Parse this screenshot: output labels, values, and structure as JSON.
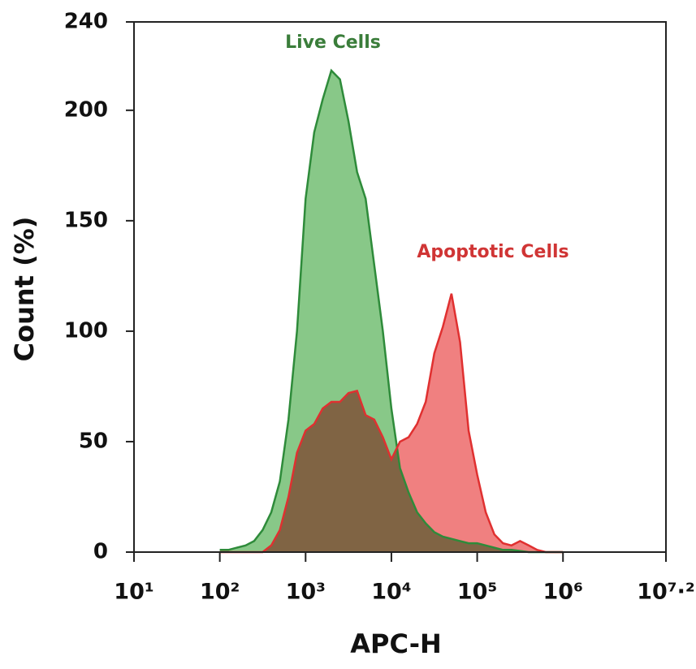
{
  "chart_data": {
    "type": "area",
    "x_label": "APC-H",
    "y_label": "Count (%)",
    "x_scale": "log",
    "xlim": [
      10,
      15848931.92
    ],
    "xticks": [
      {
        "value": 10,
        "label": "10¹"
      },
      {
        "value": 100,
        "label": "10²"
      },
      {
        "value": 1000,
        "label": "10³"
      },
      {
        "value": 10000,
        "label": "10⁴"
      },
      {
        "value": 100000,
        "label": "10⁵"
      },
      {
        "value": 1000000,
        "label": "10⁶"
      },
      {
        "value": 15848931.92,
        "label": "10⁷·²"
      }
    ],
    "ylim": [
      0,
      240
    ],
    "yticks": [
      0,
      50,
      100,
      150,
      200,
      240
    ],
    "x": [
      100,
      126,
      158,
      200,
      251,
      316,
      398,
      501,
      631,
      794,
      1000,
      1259,
      1585,
      1995,
      2512,
      3162,
      3981,
      5012,
      6310,
      7943,
      10000,
      12589,
      15849,
      19953,
      25119,
      31623,
      39811,
      50119,
      63096,
      79433,
      100000,
      125893,
      158489,
      199526,
      251189,
      316228,
      398107,
      501187,
      630957,
      794328,
      1000000
    ],
    "series": [
      {
        "name": "Live Cells",
        "color": "#2e8b3a",
        "fill": "#88c888",
        "values": [
          1,
          1,
          2,
          3,
          5,
          10,
          18,
          32,
          60,
          100,
          160,
          190,
          205,
          218,
          214,
          195,
          172,
          160,
          130,
          100,
          65,
          38,
          27,
          18,
          13,
          9,
          7,
          6,
          5,
          4,
          4,
          3,
          2,
          1,
          1,
          0.5,
          0,
          0,
          0,
          0,
          0
        ]
      },
      {
        "name": "Apoptotic Cells",
        "color": "#e03030",
        "fill": "#f08080",
        "values": [
          0,
          0,
          0,
          0,
          0,
          0,
          3,
          10,
          25,
          45,
          55,
          58,
          65,
          68,
          68,
          72,
          73,
          62,
          60,
          52,
          42,
          50,
          52,
          58,
          68,
          90,
          102,
          117,
          95,
          55,
          35,
          18,
          8,
          4,
          3,
          5,
          3,
          1,
          0,
          0,
          0
        ]
      }
    ],
    "annotations": [
      {
        "text": "Live Cells",
        "color": "#3a7d3a"
      },
      {
        "text": "Apoptotic Cells",
        "color": "#d03535"
      }
    ]
  }
}
